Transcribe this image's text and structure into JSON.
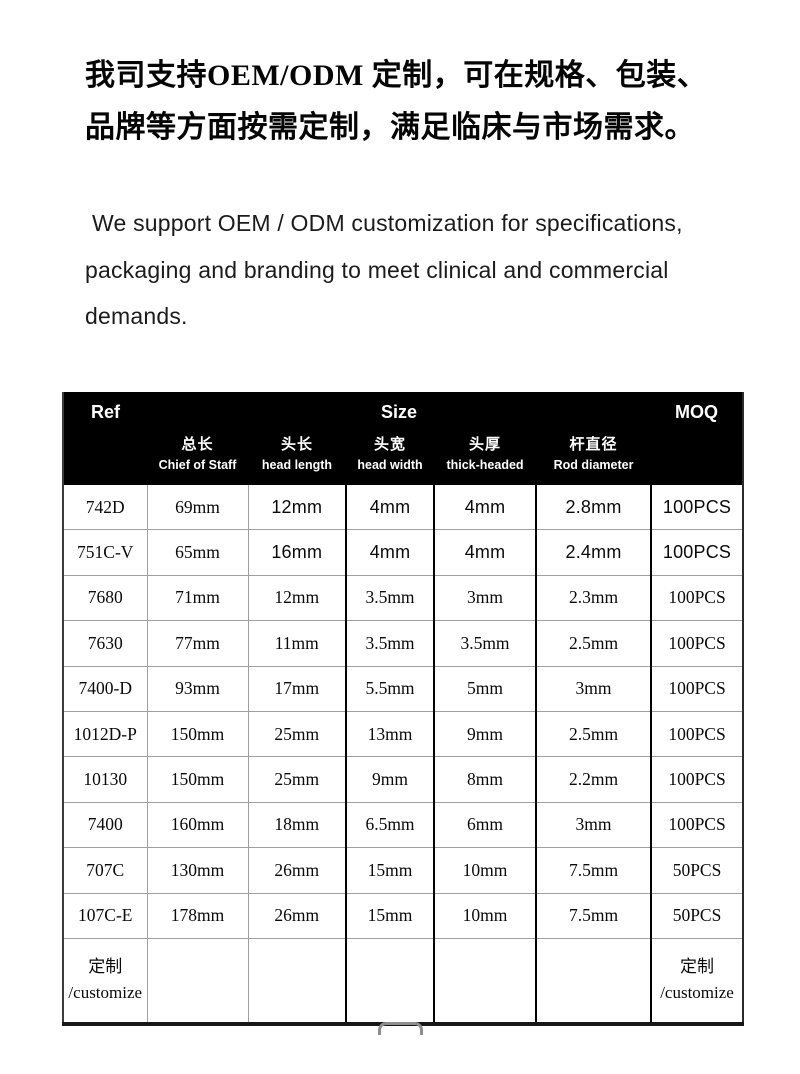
{
  "heading_cn": {
    "lines": [
      "我司支持OEM/ODM 定制，可在规格、包装、",
      "品牌等方面按需定制，满足临床与市场需求。"
    ]
  },
  "intro_en": {
    "lines": [
      "We support OEM / ODM customization for specifications,",
      "packaging and branding to meet clinical and commercial",
      "demands."
    ]
  },
  "table": {
    "header": {
      "ref": "Ref",
      "size": "Size",
      "moq": "MOQ"
    },
    "columns": [
      {
        "zh": "总长",
        "en": "Chief of Staff"
      },
      {
        "zh": "头长",
        "en": "head length"
      },
      {
        "zh": "头宽",
        "en": "head width"
      },
      {
        "zh": "头厚",
        "en": "thick-headed"
      },
      {
        "zh": "杆直径",
        "en": "Rod diameter"
      }
    ],
    "rows": [
      [
        "742D",
        "69mm",
        "12mm",
        "4mm",
        "4mm",
        "2.8mm",
        "100PCS"
      ],
      [
        "751C-V",
        "65mm",
        "16mm",
        "4mm",
        "4mm",
        "2.4mm",
        "100PCS"
      ],
      [
        "7680",
        "71mm",
        "12mm",
        "3.5mm",
        "3mm",
        "2.3mm",
        "100PCS"
      ],
      [
        "7630",
        "77mm",
        "11mm",
        "3.5mm",
        "3.5mm",
        "2.5mm",
        "100PCS"
      ],
      [
        "7400-D",
        "93mm",
        "17mm",
        "5.5mm",
        "5mm",
        "3mm",
        "100PCS"
      ],
      [
        "1012D-P",
        "150mm",
        "25mm",
        "13mm",
        "9mm",
        "2.5mm",
        "100PCS"
      ],
      [
        "10130",
        "150mm",
        "25mm",
        "9mm",
        "8mm",
        "2.2mm",
        "100PCS"
      ],
      [
        "7400",
        "160mm",
        "18mm",
        "6.5mm",
        "6mm",
        "3mm",
        "100PCS"
      ],
      [
        "707C",
        "130mm",
        "26mm",
        "15mm",
        "10mm",
        "7.5mm",
        "50PCS"
      ],
      [
        "107C-E",
        "178mm",
        "26mm",
        "15mm",
        "10mm",
        "7.5mm",
        "50PCS"
      ],
      [
        "定制\n/customize",
        "",
        "",
        "",
        "",
        "",
        "定制\n/customize"
      ]
    ]
  },
  "footer_partial_shape": "rounded-rect-top-edge",
  "colors": {
    "page_bg": "#ffffff",
    "header_bg": "#000000",
    "header_text": "#ffffff",
    "body_text": "#0a0a0a",
    "grid_light": "#9f9f9f",
    "grid_dark": "#000000"
  }
}
